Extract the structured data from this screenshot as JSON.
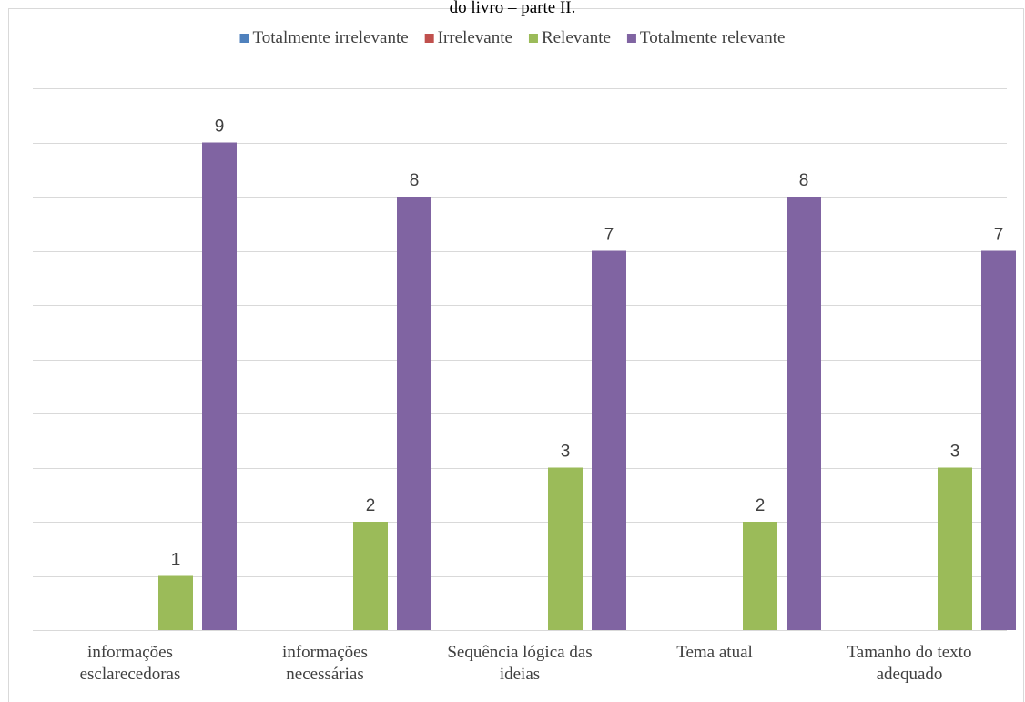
{
  "caption_fragment": "do livro – parte II.",
  "chart_data": {
    "type": "bar",
    "categories": [
      [
        "informações",
        "esclarecedoras"
      ],
      [
        "informações",
        "necessárias"
      ],
      [
        "Sequência lógica das",
        "ideias"
      ],
      [
        "Tema atual"
      ],
      [
        "Tamanho do texto",
        "adequado"
      ]
    ],
    "series": [
      {
        "name": "Totalmente irrelevante",
        "color": "#4F81BD",
        "values": [
          0,
          0,
          0,
          0,
          0
        ]
      },
      {
        "name": "Irrelevante",
        "color": "#C0504D",
        "values": [
          0,
          0,
          0,
          0,
          0
        ]
      },
      {
        "name": "Relevante",
        "color": "#9BBB59",
        "values": [
          1,
          2,
          3,
          2,
          3
        ]
      },
      {
        "name": "Totalmente relevante",
        "color": "#8064A2",
        "values": [
          9,
          8,
          7,
          8,
          7
        ]
      }
    ],
    "ylim": [
      0,
      10
    ],
    "grid": true,
    "legend_position": "top"
  }
}
